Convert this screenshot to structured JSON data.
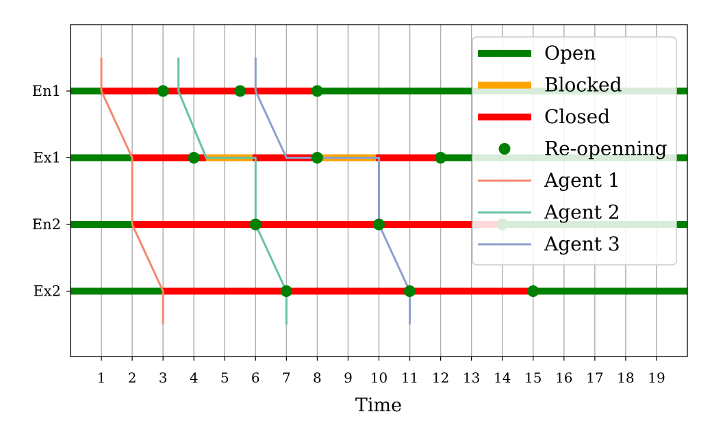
{
  "chart_data": {
    "type": "timeline",
    "title": "",
    "xlabel": "Time",
    "ylabel": "",
    "xlim": [
      0,
      20
    ],
    "x_ticks": [
      1,
      2,
      3,
      4,
      5,
      6,
      7,
      8,
      9,
      10,
      11,
      12,
      13,
      14,
      15,
      16,
      17,
      18,
      19
    ],
    "grid": "vertical",
    "rows": [
      "En1",
      "Ex1",
      "En2",
      "Ex2"
    ],
    "status_colors": {
      "Open": "#008000",
      "Blocked": "#FFA500",
      "Closed": "#FF0000"
    },
    "intervals": [
      {
        "row": "En1",
        "state": "Open",
        "start": 0,
        "end": 1
      },
      {
        "row": "En1",
        "state": "Closed",
        "start": 1,
        "end": 8
      },
      {
        "row": "En1",
        "state": "Open",
        "start": 8,
        "end": 20
      },
      {
        "row": "Ex1",
        "state": "Open",
        "start": 0,
        "end": 2
      },
      {
        "row": "Ex1",
        "state": "Closed",
        "start": 2,
        "end": 4.4
      },
      {
        "row": "Ex1",
        "state": "Blocked",
        "start": 4.4,
        "end": 5.9
      },
      {
        "row": "Ex1",
        "state": "Closed",
        "start": 5.9,
        "end": 8.1
      },
      {
        "row": "Ex1",
        "state": "Blocked",
        "start": 8.1,
        "end": 9.9
      },
      {
        "row": "Ex1",
        "state": "Closed",
        "start": 9.9,
        "end": 12
      },
      {
        "row": "Ex1",
        "state": "Open",
        "start": 12,
        "end": 20
      },
      {
        "row": "En2",
        "state": "Open",
        "start": 0,
        "end": 2
      },
      {
        "row": "En2",
        "state": "Closed",
        "start": 2,
        "end": 14
      },
      {
        "row": "En2",
        "state": "Open",
        "start": 14,
        "end": 20
      },
      {
        "row": "Ex2",
        "state": "Open",
        "start": 0,
        "end": 3
      },
      {
        "row": "Ex2",
        "state": "Closed",
        "start": 3,
        "end": 15
      },
      {
        "row": "Ex2",
        "state": "Open",
        "start": 15,
        "end": 20
      }
    ],
    "reopenings": [
      {
        "row": "En1",
        "x": 3
      },
      {
        "row": "En1",
        "x": 5.5
      },
      {
        "row": "En1",
        "x": 8
      },
      {
        "row": "Ex1",
        "x": 4
      },
      {
        "row": "Ex1",
        "x": 8
      },
      {
        "row": "Ex1",
        "x": 12
      },
      {
        "row": "En2",
        "x": 6
      },
      {
        "row": "En2",
        "x": 10
      },
      {
        "row": "En2",
        "x": 14
      },
      {
        "row": "Ex2",
        "x": 7
      },
      {
        "row": "Ex2",
        "x": 11
      },
      {
        "row": "Ex2",
        "x": 15
      }
    ],
    "agents": [
      {
        "name": "Agent 1",
        "color": "#F4896A",
        "points": [
          [
            1,
            -0.5
          ],
          [
            1,
            0
          ],
          [
            2,
            1
          ],
          [
            2,
            2
          ],
          [
            3,
            3
          ],
          [
            3,
            3.5
          ]
        ]
      },
      {
        "name": "Agent 2",
        "color": "#66C2A5",
        "points": [
          [
            3.5,
            -0.5
          ],
          [
            3.5,
            0
          ],
          [
            4.4,
            1
          ],
          [
            6,
            1
          ],
          [
            6,
            2
          ],
          [
            7,
            3
          ],
          [
            7,
            3.5
          ]
        ]
      },
      {
        "name": "Agent 3",
        "color": "#8DA0CB",
        "points": [
          [
            6,
            -0.5
          ],
          [
            6,
            0
          ],
          [
            7,
            1
          ],
          [
            10,
            1
          ],
          [
            10,
            2
          ],
          [
            11,
            3
          ],
          [
            11,
            3.5
          ]
        ]
      }
    ],
    "legend": {
      "placement": "upper-right",
      "entries": [
        {
          "label": "Open",
          "kind": "thick-line",
          "color": "#008000"
        },
        {
          "label": "Blocked",
          "kind": "thick-line",
          "color": "#FFA500"
        },
        {
          "label": "Closed",
          "kind": "thick-line",
          "color": "#FF0000"
        },
        {
          "label": "Re-openning",
          "kind": "marker",
          "color": "#008000"
        },
        {
          "label": "Agent 1",
          "kind": "line",
          "color": "#F4896A"
        },
        {
          "label": "Agent 2",
          "kind": "line",
          "color": "#66C2A5"
        },
        {
          "label": "Agent 3",
          "kind": "line",
          "color": "#8DA0CB"
        }
      ]
    }
  }
}
